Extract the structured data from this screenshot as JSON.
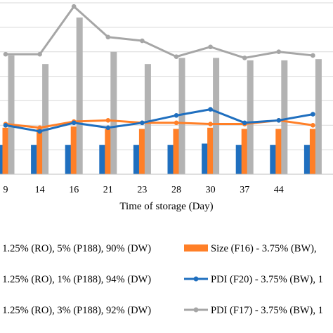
{
  "chart_data": {
    "type": "bar",
    "xlabel": "Time of storage (Day)",
    "categories": [
      "9",
      "14",
      "16",
      "21",
      "23",
      "28",
      "30",
      "37",
      "44",
      ""
    ],
    "ylim": [
      0,
      7
    ],
    "grid": true,
    "series": [
      {
        "kind": "bar",
        "color": "#1f6fbf",
        "values": [
          1.2,
          1.2,
          1.2,
          1.2,
          1.2,
          1.2,
          1.25,
          1.2,
          1.2,
          1.2
        ]
      },
      {
        "kind": "bar",
        "color": "#ff7f27",
        "values": [
          1.9,
          1.85,
          1.95,
          1.85,
          1.85,
          1.85,
          1.9,
          1.85,
          1.85,
          1.85
        ]
      },
      {
        "kind": "bar",
        "color": "#b3b3b3",
        "values": [
          4.85,
          4.5,
          6.4,
          5.0,
          4.5,
          4.75,
          4.75,
          4.65,
          4.65,
          4.7
        ]
      },
      {
        "kind": "line",
        "color": "#ff7f27",
        "values": [
          2.05,
          1.9,
          2.15,
          2.2,
          2.1,
          2.1,
          2.05,
          2.05,
          2.2,
          2.0
        ]
      },
      {
        "kind": "line",
        "color": "#1f6fbf",
        "values": [
          2.0,
          1.75,
          2.1,
          1.9,
          2.1,
          2.4,
          2.65,
          2.1,
          2.2,
          2.45
        ]
      },
      {
        "kind": "line",
        "color": "#a6a6a6",
        "values": [
          4.9,
          4.9,
          6.85,
          5.6,
          5.45,
          4.8,
          5.2,
          4.75,
          5.0,
          4.85
        ]
      }
    ]
  },
  "legend": [
    {
      "text": ", 1.25% (RO), 5% (P188), 90% (DW)",
      "marker": "bar-blue",
      "color": "#1f6fbf"
    },
    {
      "text": "Size (F16) - 3.75% (BW),",
      "marker": "bar-orange",
      "color": "#ff7f27"
    },
    {
      "text": ", 1.25% (RO), 1% (P188), 94% (DW)",
      "marker": "bar-orange",
      "color": "#ff7f27"
    },
    {
      "text": "PDI (F20) - 3.75% (BW), 1",
      "marker": "line-blue",
      "color": "#1f6fbf"
    },
    {
      "text": ", 1.25% (RO), 3% (P188), 92% (DW)",
      "marker": "bar-gray",
      "color": "#b3b3b3"
    },
    {
      "text": "PDI (F17) - 3.75% (BW), 1",
      "marker": "line-gray",
      "color": "#a6a6a6"
    }
  ]
}
